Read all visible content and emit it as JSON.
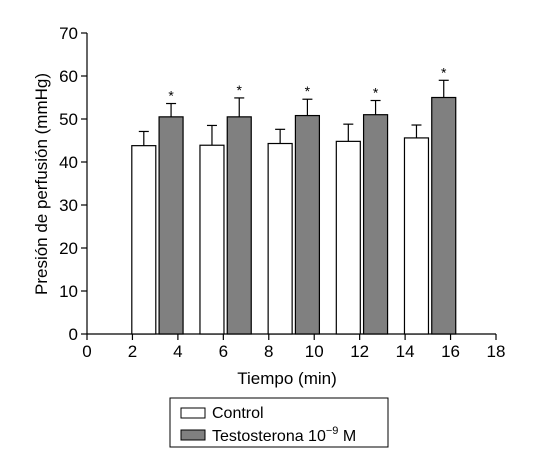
{
  "chart_data": {
    "type": "bar",
    "xlabel": "Tiempo (min)",
    "ylabel": "Presión de perfusión (mmHg)",
    "xlim": [
      0,
      18
    ],
    "ylim": [
      0,
      70
    ],
    "x_ticks": [
      0,
      2,
      4,
      6,
      8,
      10,
      12,
      14,
      16,
      18
    ],
    "y_ticks": [
      0,
      10,
      20,
      30,
      40,
      50,
      60,
      70
    ],
    "series": [
      {
        "name": "Control",
        "color": "#ffffff",
        "x": [
          2.5,
          5.5,
          8.5,
          11.5,
          14.5
        ],
        "values": [
          43.8,
          43.9,
          44.3,
          44.8,
          45.6
        ],
        "error": [
          3.3,
          4.6,
          3.3,
          4.0,
          3.0
        ]
      },
      {
        "name_parts": [
          "Testosterona 10",
          "−9",
          " M"
        ],
        "color": "#808080",
        "x": [
          3.7,
          6.7,
          9.7,
          12.7,
          15.7
        ],
        "values": [
          50.5,
          50.5,
          50.8,
          51.0,
          55.0
        ],
        "error": [
          3.1,
          4.4,
          3.8,
          3.3,
          4.0
        ],
        "annotation": "*"
      }
    ],
    "legend_position": "bottom-center",
    "grid": false
  }
}
